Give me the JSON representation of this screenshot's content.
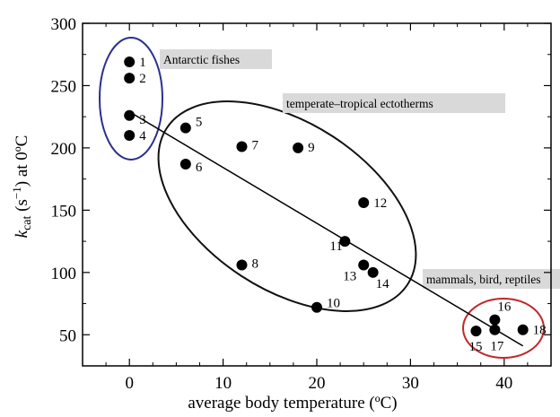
{
  "chart_data": {
    "type": "scatter",
    "title": "",
    "xlabel": "average body temperature (ºC)",
    "ylabel": {
      "prefix": "k",
      "sub": "cat",
      "mid": " (s",
      "sup": "−1",
      "suffix": ") at 0ºC"
    },
    "xlim": [
      -5,
      45
    ],
    "ylim": [
      25,
      300
    ],
    "x_ticks": [
      0,
      10,
      20,
      30,
      40
    ],
    "y_ticks": [
      50,
      100,
      150,
      200,
      250,
      300
    ],
    "x_tick_labels": [
      "0",
      "10",
      "20",
      "30",
      "40"
    ],
    "y_tick_labels": [
      "50",
      "100",
      "150",
      "200",
      "250",
      "300"
    ],
    "grid": false,
    "points": [
      {
        "label": "1",
        "x": 0,
        "y": 269
      },
      {
        "label": "2",
        "x": 0,
        "y": 256
      },
      {
        "label": "3",
        "x": 0,
        "y": 226
      },
      {
        "label": "4",
        "x": 0,
        "y": 210
      },
      {
        "label": "5",
        "x": 6,
        "y": 216
      },
      {
        "label": "6",
        "x": 6,
        "y": 187
      },
      {
        "label": "7",
        "x": 12,
        "y": 201
      },
      {
        "label": "8",
        "x": 12,
        "y": 106
      },
      {
        "label": "9",
        "x": 18,
        "y": 200
      },
      {
        "label": "10",
        "x": 20,
        "y": 72
      },
      {
        "label": "11",
        "x": 23,
        "y": 125
      },
      {
        "label": "12",
        "x": 25,
        "y": 156
      },
      {
        "label": "13",
        "x": 25,
        "y": 106
      },
      {
        "label": "14",
        "x": 26,
        "y": 100
      },
      {
        "label": "15",
        "x": 37,
        "y": 53
      },
      {
        "label": "16",
        "x": 39,
        "y": 62
      },
      {
        "label": "17",
        "x": 39,
        "y": 54
      },
      {
        "label": "18",
        "x": 42,
        "y": 54
      }
    ],
    "trend_line": {
      "x": [
        0,
        42
      ],
      "y": [
        229,
        41
      ]
    },
    "groups": [
      {
        "label": "Antarctic fishes",
        "color": "#2b2f8f"
      },
      {
        "label": "temperate–tropical ectotherms",
        "color": "#111111"
      },
      {
        "label": "mammals, bird, reptiles",
        "color": "#c0282c"
      }
    ]
  }
}
